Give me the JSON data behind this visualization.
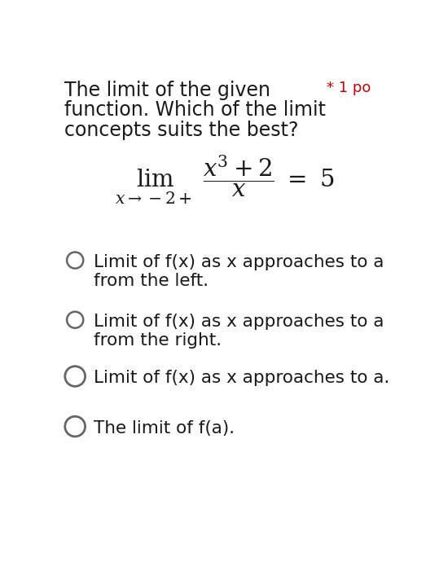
{
  "bg_color": "#ffffff",
  "title_line1": "The limit of the given",
  "title_line2": "function. Which of the limit",
  "title_line3": "concepts suits the best?",
  "points_label": "* 1 po",
  "points_color": "#cc0000",
  "options": [
    [
      "Limit of f(x) as x approaches to a",
      "from the left."
    ],
    [
      "Limit of f(x) as x approaches to a",
      "from the right."
    ],
    [
      "Limit of f(x) as x approaches to a.",
      ""
    ],
    [
      "The limit of f(a).",
      ""
    ]
  ],
  "text_color": "#1a1a1a",
  "circle_color": "#666666",
  "font_size_title": 17,
  "font_size_options": 15.5,
  "font_size_points": 13,
  "font_size_formula": 21
}
